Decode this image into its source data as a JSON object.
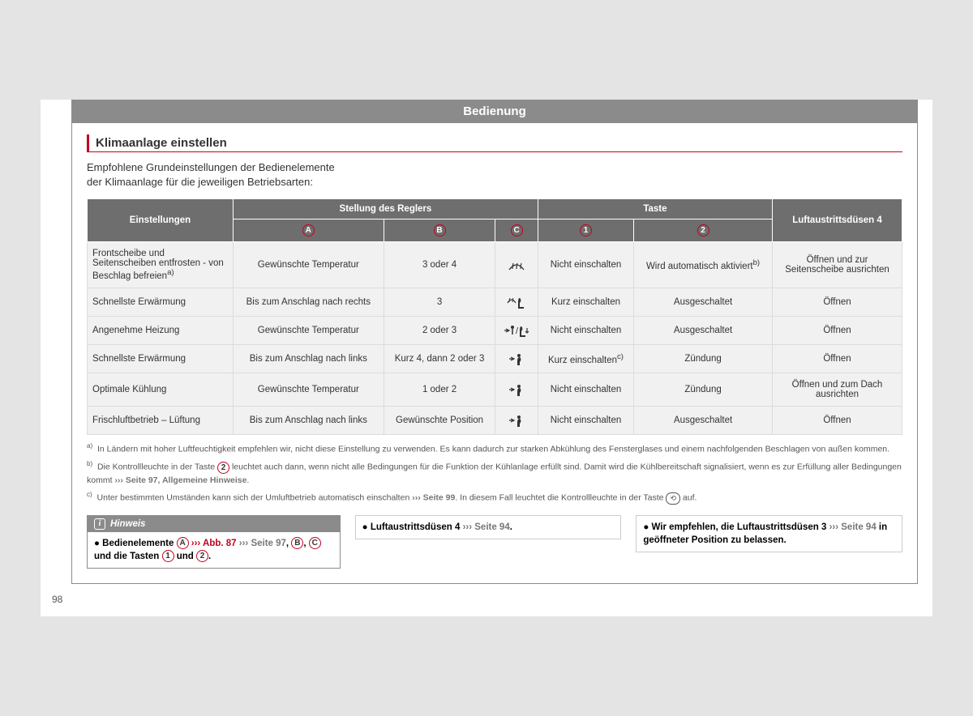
{
  "header": "Bedienung",
  "section_title": "Klimaanlage einstellen",
  "intro": "Empfohlene Grundeinstellungen der Bedienelemente der Klimaanlage für die jeweiligen Betriebsarten:",
  "table": {
    "head": {
      "settings": "Einstellungen",
      "regler": "Stellung des Reglers",
      "taste": "Taste",
      "duesen": "Luftaustrittsdüsen 4",
      "A": "A",
      "B": "B",
      "C": "C",
      "1": "1",
      "2": "2"
    },
    "rows": [
      {
        "label_pre": "Frontscheibe und Seitenscheiben entfrosten - von Beschlag befreien",
        "label_sup": "a)",
        "A": "Gewünschte Temperatur",
        "B": "3 oder 4",
        "icon": "defrost",
        "t1": "Nicht einschalten",
        "t2_pre": "Wird automatisch aktiviert",
        "t2_sup": "b)",
        "duesen": "Öffnen und zur Seitenscheibe ausrichten"
      },
      {
        "label_pre": "Schnellste Erwärmung",
        "A": "Bis zum Anschlag nach rechts",
        "B": "3",
        "icon": "defrost-foot",
        "t1": "Kurz einschalten",
        "t2_pre": "Ausgeschaltet",
        "duesen": "Öffnen"
      },
      {
        "label_pre": "Angenehme Heizung",
        "A": "Gewünschte Temperatur",
        "B": "2 oder 3",
        "icon": "face-foot",
        "t1": "Nicht einschalten",
        "t2_pre": "Ausgeschaltet",
        "duesen": "Öffnen"
      },
      {
        "label_pre": "Schnellste Erwärmung",
        "A": "Bis zum Anschlag nach links",
        "B": "Kurz 4, dann 2 oder 3",
        "icon": "face",
        "t1_pre": "Kurz einschalten",
        "t1_sup": "c)",
        "t2_pre": "Zündung",
        "duesen": "Öffnen"
      },
      {
        "label_pre": "Optimale Kühlung",
        "A": "Gewünschte Temperatur",
        "B": "1 oder 2",
        "icon": "face",
        "t1": "Nicht einschalten",
        "t2_pre": "Zündung",
        "duesen": "Öffnen und zum Dach ausrichten"
      },
      {
        "label_pre": "Frischluftbetrieb – Lüftung",
        "A": "Bis zum Anschlag nach links",
        "B": "Gewünschte Position",
        "icon": "face",
        "t1": "Nicht einschalten",
        "t2_pre": "Ausgeschaltet",
        "duesen": "Öffnen"
      }
    ]
  },
  "footnotes": {
    "a": "In Ländern mit hoher Luftfeuchtigkeit empfehlen wir, nicht diese Einstellung zu verwenden. Es kann dadurch zur starken Abkühlung des Fensterglases und einem nachfolgenden Beschlagen von außen kommen.",
    "b_pre": "Die Kontrollleuchte in der Taste ",
    "b_post1": " leuchtet auch dann, wenn nicht alle Bedingungen für die Funktion der Kühlanlage erfüllt sind. Damit wird die Kühlbereitschaft signalisiert, wenn es zur Erfüllung aller Bedingungen kommt ",
    "b_ref": "››› Seite 97, Allgemeine Hinweise",
    "c_pre": "Unter bestimmten Umständen kann sich der Umluftbetrieb automatisch einschalten ",
    "c_ref": "››› Seite 99",
    "c_post": ". In diesem Fall leuchtet die Kontrollleuchte in der Taste ",
    "c_end": " auf."
  },
  "hint": {
    "label": "Hinweis",
    "line1_pre": "Bedienelemente ",
    "line1_abb": "››› Abb. 87",
    "line1_seite": " ››› Seite 97",
    "line2_mid": " und die Tasten ",
    "line2_und": " und "
  },
  "box2": {
    "text": "Luftaustrittsdüsen 4 ",
    "ref": "››› Seite 94"
  },
  "box3": {
    "pre": "Wir empfehlen, die Luftaustrittsdüsen 3 ",
    "ref": "››› Seite 94",
    "post": " in geöffneter Position zu belassen."
  },
  "page_num": "98",
  "reg_labels": {
    "A": "A",
    "B": "B",
    "C": "C",
    "1": "1",
    "2": "2"
  }
}
